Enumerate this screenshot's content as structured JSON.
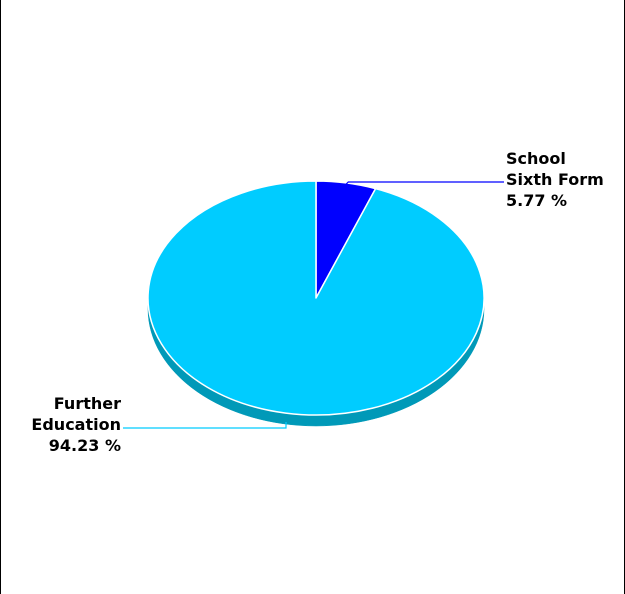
{
  "chart_data": {
    "type": "pie",
    "title": "",
    "slices": [
      {
        "label_lines": [
          "School",
          "Sixth Form"
        ],
        "percent_text": "5.77 %",
        "value": 5.77,
        "color": "#0000ff",
        "side_color": "#00007a"
      },
      {
        "label_lines": [
          "Further",
          "Education"
        ],
        "percent_text": "94.23 %",
        "value": 94.23,
        "color": "#00ccff",
        "side_color": "#0099b8"
      }
    ],
    "start_angle": "12 o'clock",
    "direction": "clockwise",
    "style": "3d-tilted",
    "legend": "none"
  }
}
